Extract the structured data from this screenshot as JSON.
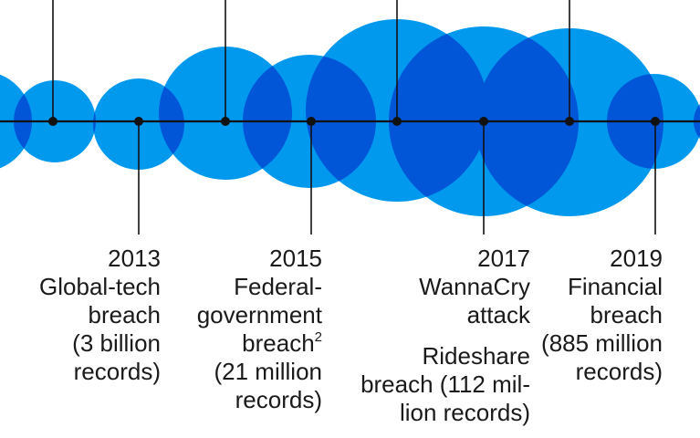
{
  "colors": {
    "bubble": "#0099ee",
    "overlap": "#0056d6",
    "line": "#111111"
  },
  "events": [
    {
      "id": "2013",
      "lines": [
        "2013",
        "Global-tech",
        "breach",
        "(3 billion",
        "records)"
      ]
    },
    {
      "id": "2015",
      "lines": [
        "2015",
        "Federal-",
        "government",
        "breach",
        "(21 million",
        "records)"
      ],
      "sup": "2"
    },
    {
      "id": "2017",
      "lines": [
        "2017",
        "WannaCry",
        "attack"
      ]
    },
    {
      "id": "2017b",
      "lines": [
        "Rideshare",
        "breach (112 mil-",
        "lion records)"
      ]
    },
    {
      "id": "2019",
      "lines": [
        "2019",
        "Financial",
        "breach",
        "(885 million",
        "records)"
      ]
    }
  ]
}
